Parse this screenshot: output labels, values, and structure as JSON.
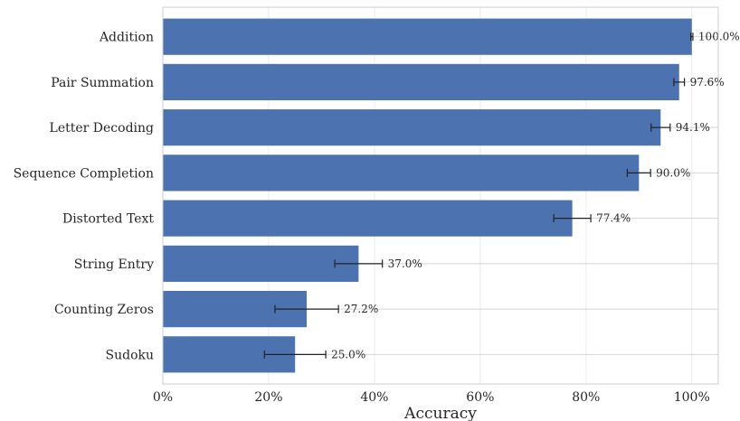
{
  "chart_data": {
    "type": "bar",
    "orientation": "horizontal",
    "categories": [
      "Addition",
      "Pair Summation",
      "Letter Decoding",
      "Sequence Completion",
      "Distorted Text",
      "String Entry",
      "Counting Zeros",
      "Sudoku"
    ],
    "values": [
      100.0,
      97.6,
      94.1,
      90.0,
      77.4,
      37.0,
      27.2,
      25.0
    ],
    "errors": [
      0.2,
      1.0,
      1.8,
      2.2,
      3.5,
      4.5,
      6.0,
      5.8
    ],
    "value_labels": [
      "100.0%",
      "97.6%",
      "94.1%",
      "90.0%",
      "77.4%",
      "37.0%",
      "27.2%",
      "25.0%"
    ],
    "xlabel": "Accuracy",
    "ylabel": "",
    "title": "",
    "xlim": [
      0,
      105
    ],
    "xticks": [
      0,
      20,
      40,
      60,
      80,
      100
    ],
    "xtick_labels": [
      "0%",
      "20%",
      "40%",
      "60%",
      "80%",
      "100%"
    ],
    "grid": true,
    "bar_color": "#4c72b0"
  }
}
